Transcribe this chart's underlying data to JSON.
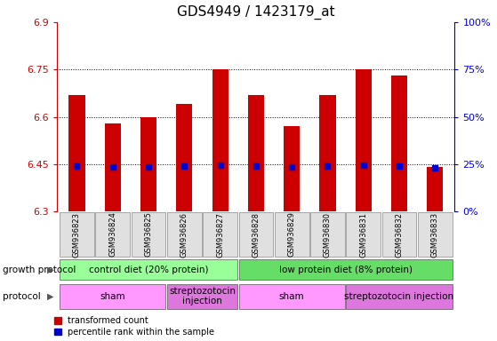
{
  "title": "GDS4949 / 1423179_at",
  "samples": [
    "GSM936823",
    "GSM936824",
    "GSM936825",
    "GSM936826",
    "GSM936827",
    "GSM936828",
    "GSM936829",
    "GSM936830",
    "GSM936831",
    "GSM936832",
    "GSM936833"
  ],
  "bar_tops": [
    6.67,
    6.58,
    6.6,
    6.64,
    6.75,
    6.67,
    6.57,
    6.67,
    6.75,
    6.73,
    6.44
  ],
  "blue_vals": [
    6.445,
    6.44,
    6.44,
    6.445,
    6.448,
    6.445,
    6.44,
    6.445,
    6.448,
    6.445,
    6.437
  ],
  "bar_bottom": 6.3,
  "ylim_min": 6.3,
  "ylim_max": 6.9,
  "left_yticks": [
    6.3,
    6.45,
    6.6,
    6.75,
    6.9
  ],
  "right_yticks": [
    "0%",
    "25%",
    "50%",
    "75%",
    "100%"
  ],
  "right_ytick_vals": [
    6.3,
    6.45,
    6.6,
    6.75,
    6.9
  ],
  "grid_vals": [
    6.45,
    6.6,
    6.75
  ],
  "bar_color": "#cc0000",
  "blue_color": "#0000cc",
  "bar_width": 0.45,
  "growth_protocol_groups": [
    {
      "label": "control diet (20% protein)",
      "start": 0,
      "end": 4,
      "color": "#99ff99"
    },
    {
      "label": "low protein diet (8% protein)",
      "start": 5,
      "end": 10,
      "color": "#66dd66"
    }
  ],
  "protocol_groups": [
    {
      "label": "sham",
      "start": 0,
      "end": 2,
      "color": "#ff99ff"
    },
    {
      "label": "streptozotocin\ninjection",
      "start": 3,
      "end": 4,
      "color": "#dd77dd"
    },
    {
      "label": "sham",
      "start": 5,
      "end": 7,
      "color": "#ff99ff"
    },
    {
      "label": "streptozotocin injection",
      "start": 8,
      "end": 10,
      "color": "#dd77dd"
    }
  ],
  "legend_red_label": "transformed count",
  "legend_blue_label": "percentile rank within the sample",
  "left_axis_color": "#cc0000",
  "right_axis_color": "#0000cc",
  "title_fontsize": 11,
  "tick_fontsize": 8,
  "label_fontsize": 8,
  "sample_fontsize": 6,
  "panel_fontsize": 7.5
}
